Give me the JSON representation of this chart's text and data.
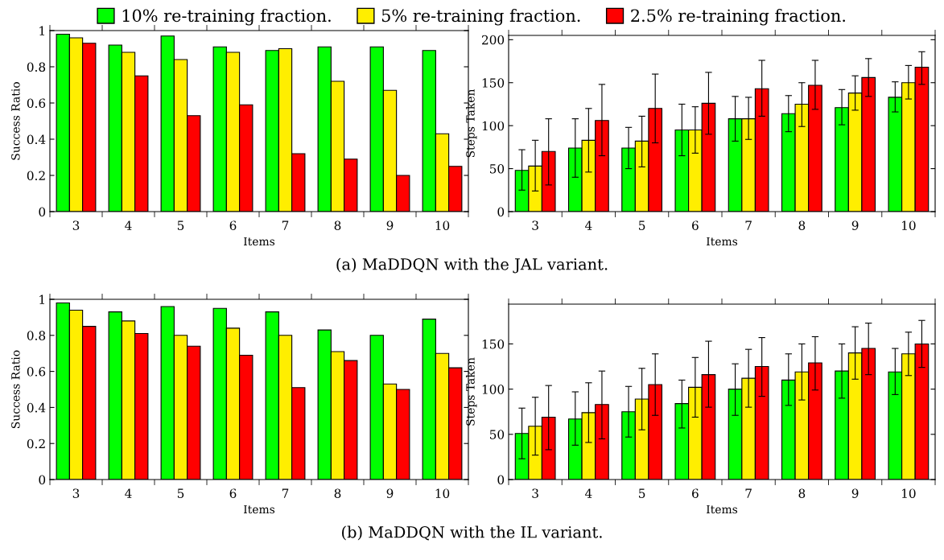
{
  "chart_data": [
    {
      "type": "bar",
      "xlabel": "Items",
      "ylabel": "Success Ratio",
      "categories": [
        "3",
        "4",
        "5",
        "6",
        "7",
        "8",
        "9",
        "10"
      ],
      "ylim": [
        0,
        1
      ],
      "yticks": [
        0,
        0.2,
        0.4,
        0.6,
        0.8,
        1
      ],
      "legend": "top",
      "annotations": [
        "(a) MaDDQN with the JAL variant."
      ],
      "series": [
        {
          "name": "10% re-training fraction.",
          "color": "#00ff00",
          "values": [
            0.98,
            0.92,
            0.97,
            0.91,
            0.89,
            0.91,
            0.91,
            0.89
          ]
        },
        {
          "name": "5% re-training fraction.",
          "color": "#ffee00",
          "values": [
            0.96,
            0.88,
            0.84,
            0.88,
            0.9,
            0.72,
            0.67,
            0.43
          ]
        },
        {
          "name": "2.5% re-training fraction.",
          "color": "#ff0000",
          "values": [
            0.93,
            0.75,
            0.53,
            0.59,
            0.32,
            0.29,
            0.2,
            0.25
          ]
        }
      ]
    },
    {
      "type": "bar",
      "xlabel": "Items",
      "ylabel": "Steps Taken",
      "categories": [
        "3",
        "4",
        "5",
        "6",
        "7",
        "8",
        "9",
        "10"
      ],
      "ylim": [
        0,
        205
      ],
      "yticks": [
        0,
        50,
        100,
        150,
        200
      ],
      "series": [
        {
          "color": "#00ff00",
          "values": [
            48,
            74,
            74,
            95,
            108,
            114,
            121,
            133
          ],
          "errors": [
            [
              25,
              72
            ],
            [
              40,
              108
            ],
            [
              50,
              98
            ],
            [
              65,
              125
            ],
            [
              82,
              134
            ],
            [
              93,
              135
            ],
            [
              101,
              142
            ],
            [
              116,
              151
            ]
          ]
        },
        {
          "color": "#ffee00",
          "values": [
            53,
            83,
            82,
            95,
            108,
            125,
            138,
            150
          ],
          "errors": [
            [
              24,
              83
            ],
            [
              46,
              120
            ],
            [
              52,
              111
            ],
            [
              68,
              122
            ],
            [
              84,
              133
            ],
            [
              99,
              150
            ],
            [
              118,
              158
            ],
            [
              131,
              170
            ]
          ]
        },
        {
          "color": "#ff0000",
          "values": [
            70,
            106,
            120,
            126,
            143,
            147,
            156,
            168
          ],
          "errors": [
            [
              31,
              108
            ],
            [
              65,
              148
            ],
            [
              80,
              160
            ],
            [
              90,
              162
            ],
            [
              111,
              176
            ],
            [
              119,
              176
            ],
            [
              134,
              178
            ],
            [
              148,
              186
            ]
          ]
        }
      ]
    },
    {
      "type": "bar",
      "xlabel": "Items",
      "ylabel": "Success Ratio",
      "categories": [
        "3",
        "4",
        "5",
        "6",
        "7",
        "8",
        "9",
        "10"
      ],
      "ylim": [
        0,
        1
      ],
      "yticks": [
        0,
        0.2,
        0.4,
        0.6,
        0.8,
        1
      ],
      "annotations": [
        "(b) MaDDQN with the IL variant."
      ],
      "series": [
        {
          "color": "#00ff00",
          "values": [
            0.98,
            0.93,
            0.96,
            0.95,
            0.93,
            0.83,
            0.8,
            0.89
          ]
        },
        {
          "color": "#ffee00",
          "values": [
            0.94,
            0.88,
            0.8,
            0.84,
            0.8,
            0.71,
            0.53,
            0.7
          ]
        },
        {
          "color": "#ff0000",
          "values": [
            0.85,
            0.81,
            0.74,
            0.69,
            0.51,
            0.66,
            0.5,
            0.62
          ]
        }
      ]
    },
    {
      "type": "bar",
      "xlabel": "Items",
      "ylabel": "Steps Taken",
      "categories": [
        "3",
        "4",
        "5",
        "6",
        "7",
        "8",
        "9",
        "10"
      ],
      "ylim": [
        0,
        194
      ],
      "yticks": [
        0,
        50,
        100,
        150
      ],
      "series": [
        {
          "color": "#00ff00",
          "values": [
            51,
            67,
            75,
            84,
            100,
            110,
            120,
            119
          ],
          "errors": [
            [
              23,
              79
            ],
            [
              38,
              97
            ],
            [
              47,
              103
            ],
            [
              57,
              110
            ],
            [
              71,
              128
            ],
            [
              82,
              139
            ],
            [
              90,
              150
            ],
            [
              94,
              145
            ]
          ]
        },
        {
          "color": "#ffee00",
          "values": [
            59,
            74,
            89,
            102,
            112,
            119,
            140,
            139
          ],
          "errors": [
            [
              27,
              91
            ],
            [
              41,
              107
            ],
            [
              55,
              123
            ],
            [
              69,
              135
            ],
            [
              80,
              144
            ],
            [
              88,
              150
            ],
            [
              111,
              169
            ],
            [
              115,
              163
            ]
          ]
        },
        {
          "color": "#ff0000",
          "values": [
            69,
            83,
            105,
            116,
            125,
            129,
            145,
            150
          ],
          "errors": [
            [
              33,
              104
            ],
            [
              45,
              120
            ],
            [
              71,
              139
            ],
            [
              80,
              153
            ],
            [
              92,
              157
            ],
            [
              99,
              158
            ],
            [
              116,
              173
            ],
            [
              124,
              176
            ]
          ]
        }
      ]
    }
  ]
}
